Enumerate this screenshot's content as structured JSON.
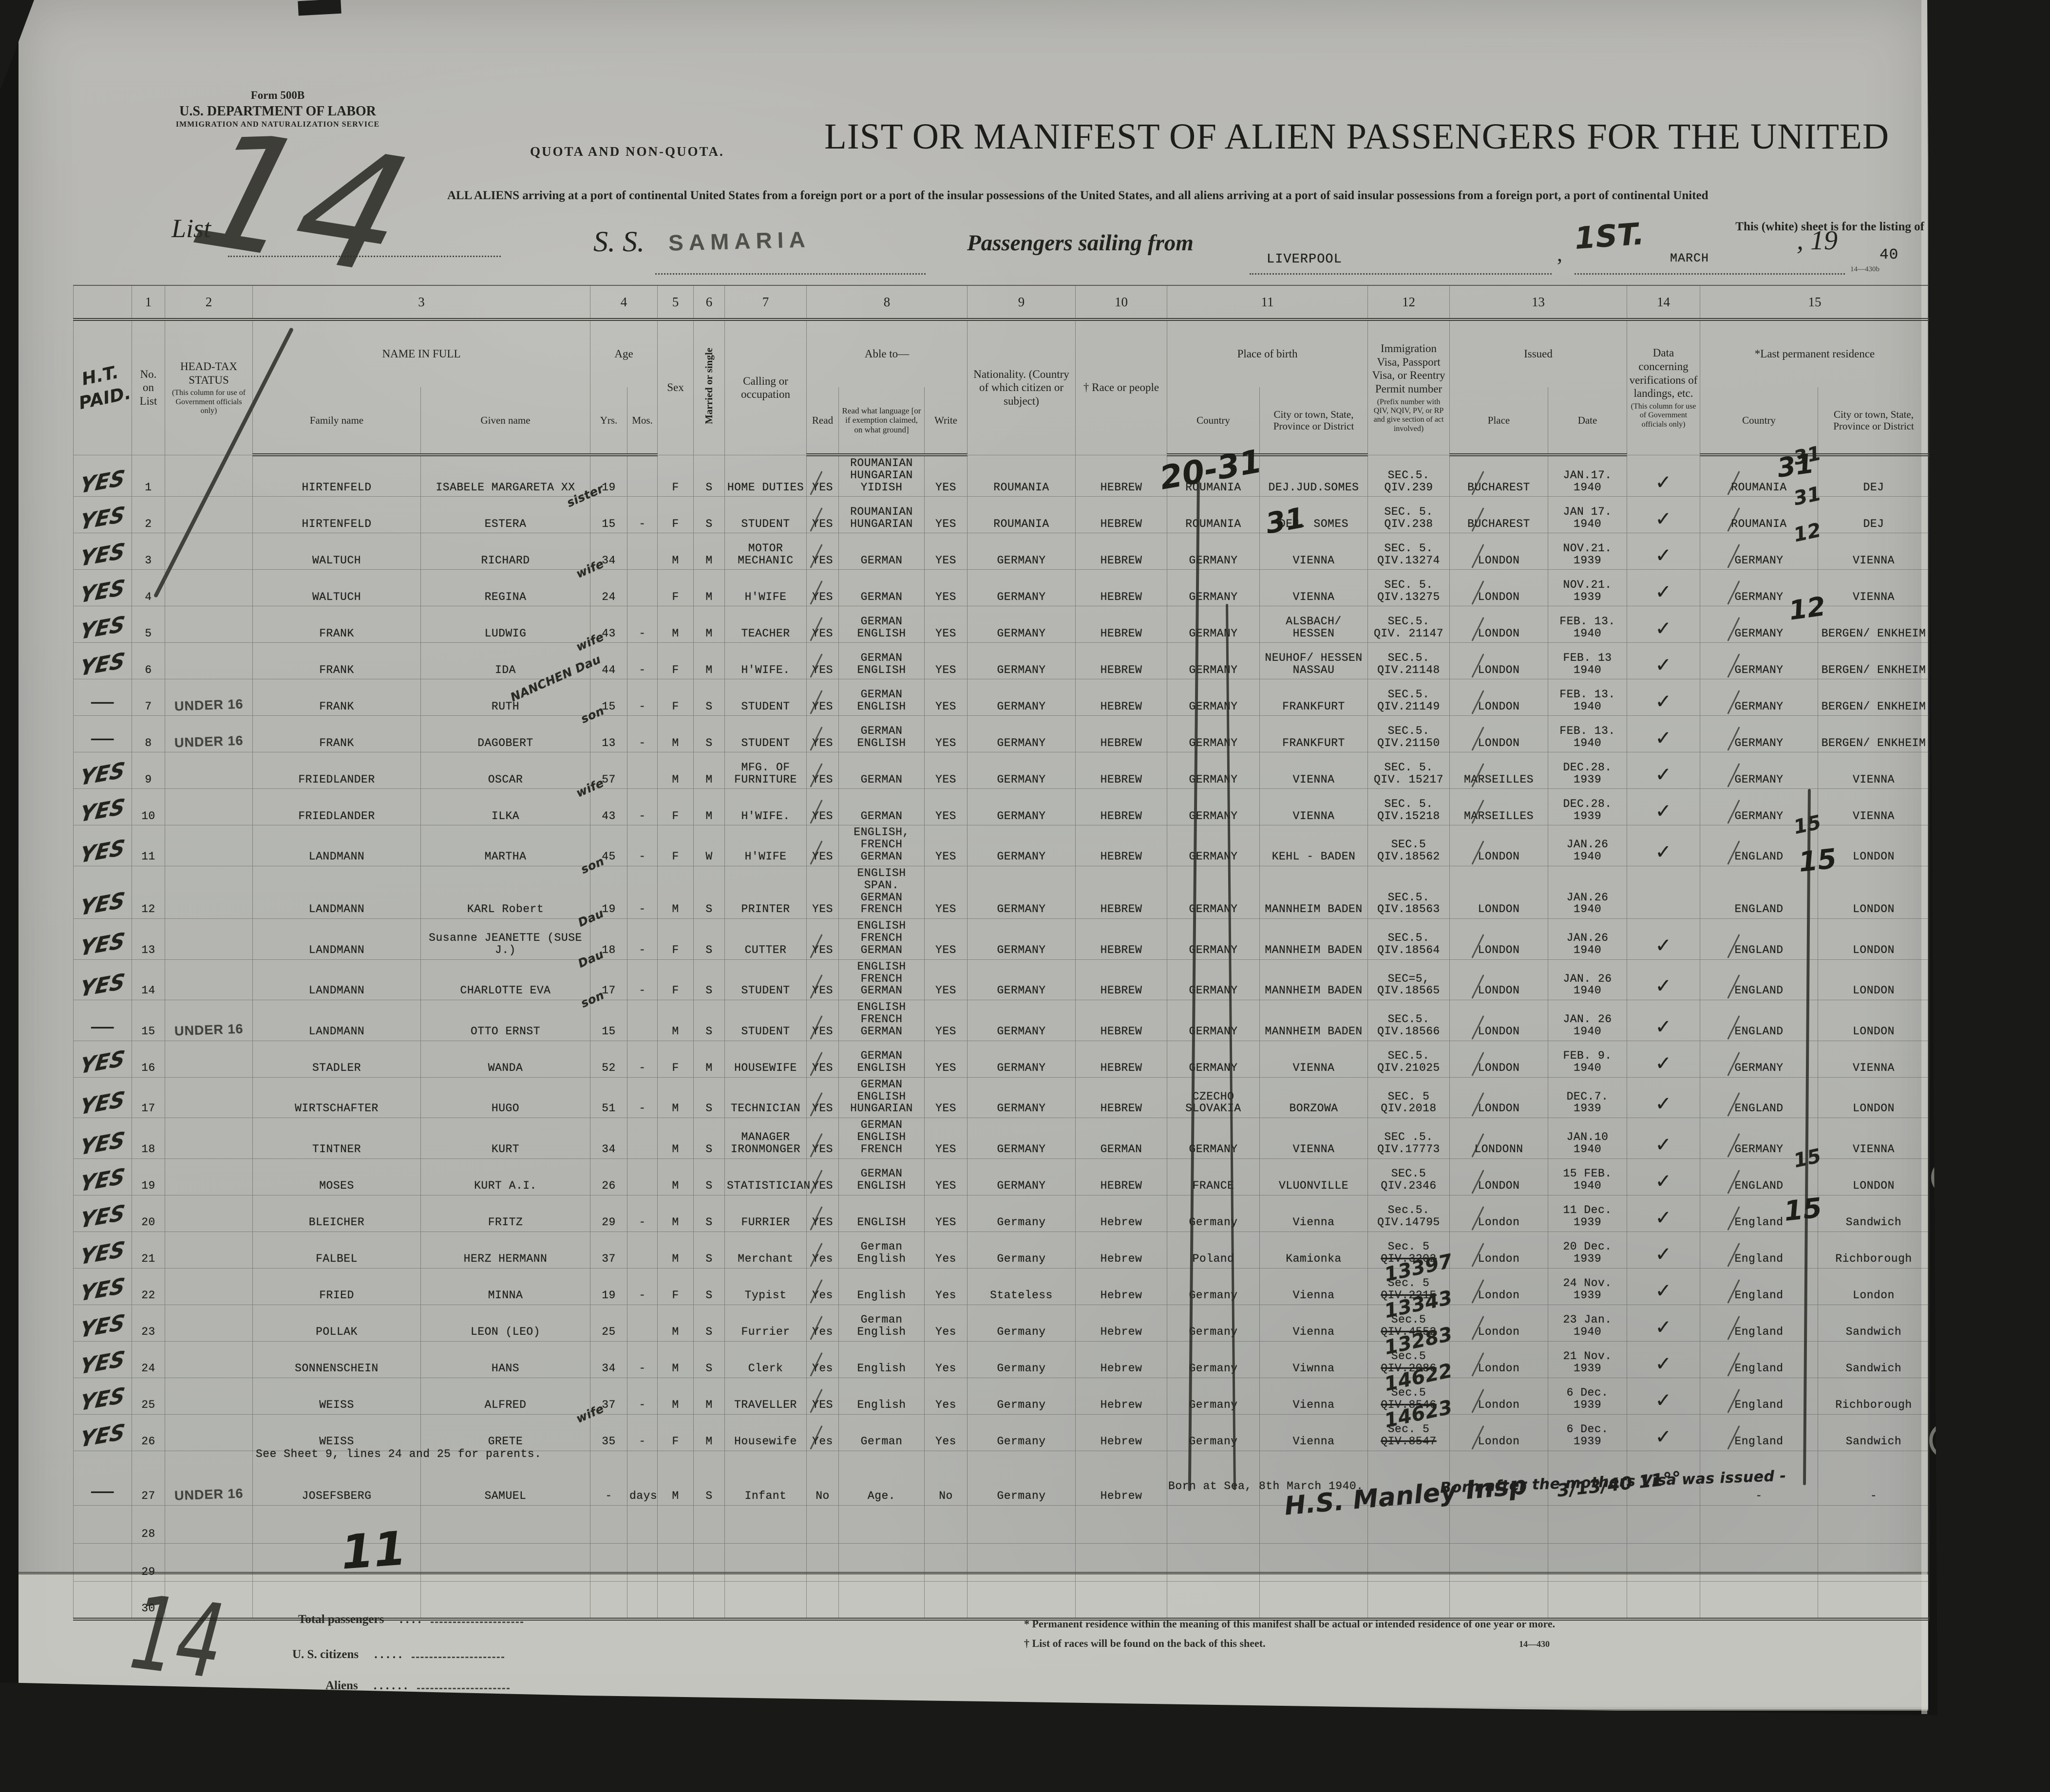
{
  "header": {
    "form_no": "Form 500B",
    "dept": "U.S. DEPARTMENT OF LABOR",
    "service": "IMMIGRATION AND NATURALIZATION SERVICE",
    "list_label": "List",
    "list_no_hw": "14",
    "quota": "QUOTA AND NON-QUOTA.",
    "title": "LIST OR MANIFEST OF ALIEN PASSENGERS FOR THE UNITED",
    "subtitle": "ALL ALIENS arriving at a port of continental United States from a foreign port or a port of the insular possessions of the United States, and all aliens arriving at a port of said insular possessions from a foreign port, a port of continental United",
    "subtitle2": "This (white) sheet is for the listing of",
    "ss_label": "S. S.",
    "ship": "SAMARIA",
    "sailing_label": "Passengers sailing from",
    "port": "LIVERPOOL",
    "sail_day_hw": "1ST.",
    "sail_month": "MARCH",
    "year_prefix": ", 19",
    "year_typed": "40",
    "form_small": "14—430b"
  },
  "ann": {
    "ht1": "H.T.",
    "ht2": "PAID.",
    "crossout": "20-31",
    "n31a": "31",
    "n31b": "31",
    "n12": "12",
    "n15a": "15",
    "n15b": "15",
    "tally": "14",
    "count11": "11"
  },
  "table": {
    "nums": [
      "1",
      "2",
      "3",
      "4",
      "5",
      "6",
      "7",
      "8",
      "9",
      "10",
      "11",
      "12",
      "13",
      "14",
      "15"
    ],
    "h": {
      "no_label": "No. on List",
      "headtax": "HEAD-TAX STATUS",
      "headtax_sub": "(This column for use of Government officials only)",
      "name": "NAME IN FULL",
      "family": "Family name",
      "given": "Given name",
      "age": "Age",
      "yrs": "Yrs.",
      "mos": "Mos.",
      "sex": "Sex",
      "married": "Married or single",
      "calling": "Calling or occupation",
      "able": "Able to—",
      "read": "Read",
      "read_lang": "Read what language [or if exemption claimed, on what ground]",
      "write": "Write",
      "nationality": "Nationality. (Country of which citizen or subject)",
      "race": "† Race or people",
      "birth": "Place of birth",
      "country": "Country",
      "city": "City or town, State, Province or District",
      "visa": "Immigration Visa, Passport Visa, or Reentry Permit number",
      "visa_sub": "(Prefix number with QIV, NQIV, PV, or RP and give section of act involved)",
      "issued": "Issued",
      "place": "Place",
      "date": "Date",
      "verif": "Data concerning verifications of landings, etc.",
      "verif_sub": "(This column for use of Government officials only)",
      "lastres": "*Last permanent residence"
    },
    "rows": [
      {
        "no": "1",
        "ht": "YES",
        "family": "HIRTENFELD",
        "given": "ISABELE MARGARETA XX",
        "yrs": "19",
        "mos": "",
        "sex": "F",
        "ms": "S",
        "calling": "HOME DUTIES",
        "read": "YES",
        "lang": "ROUMANIAN HUNGARIAN YIDISH",
        "write": "YES",
        "nat": "ROUMANIA",
        "race": "HEBREW",
        "bco": "ROUMANIA",
        "bci": "DEJ.JUD.SOMES",
        "visa": "SEC.5.|QIV.239",
        "place": "BUCHAREST",
        "date": "JAN.17. 1940",
        "chk": "✓",
        "lco": "ROUMANIA",
        "lco_hw": "31",
        "lci": "DEJ"
      },
      {
        "no": "2",
        "ht": "YES",
        "hw": "sister",
        "family": "HIRTENFELD",
        "given": "ESTERA",
        "yrs": "15",
        "mos": "-",
        "sex": "F",
        "ms": "S",
        "calling": "STUDENT",
        "read": "YES",
        "lang": "ROUMANIAN HUNGARIAN",
        "write": "YES",
        "nat": "ROUMANIA",
        "race": "HEBREW",
        "bco": "ROUMANIA",
        "bci": "DEJ. SOMES",
        "visa": "SEC. 5.|QIV.238",
        "place": "BUCHAREST",
        "date": "JAN 17. 1940",
        "chk": "✓",
        "lco": "ROUMANIA",
        "lco_hw": "31",
        "lci": "DEJ"
      },
      {
        "no": "3",
        "ht": "YES",
        "family": "WALTUCH",
        "given": "RICHARD",
        "yrs": "34",
        "mos": "",
        "sex": "M",
        "ms": "M",
        "calling": "MOTOR MECHANIC",
        "read": "YES",
        "lang": "GERMAN",
        "write": "YES",
        "nat": "GERMANY",
        "race": "HEBREW",
        "bco": "GERMANY",
        "bci": "VIENNA",
        "visa": "SEC. 5.|QIV.13274",
        "place": "LONDON",
        "date": "NOV.21. 1939",
        "chk": "✓",
        "lco": "GERMANY",
        "lco_hw": "12",
        "lci": "VIENNA"
      },
      {
        "no": "4",
        "ht": "YES",
        "hw": "wife",
        "family": "WALTUCH",
        "given": "REGINA",
        "yrs": "24",
        "mos": "",
        "sex": "F",
        "ms": "M",
        "calling": "H'WIFE",
        "read": "YES",
        "lang": "GERMAN",
        "write": "YES",
        "nat": "GERMANY",
        "race": "HEBREW",
        "bco": "GERMANY",
        "bci": "VIENNA",
        "visa": "SEC. 5.|QIV.13275",
        "place": "LONDON",
        "date": "NOV.21. 1939",
        "chk": "✓",
        "lco": "GERMANY",
        "lci": "VIENNA"
      },
      {
        "no": "5",
        "ht": "YES",
        "family": "FRANK",
        "given": "LUDWIG",
        "yrs": "43",
        "mos": "-",
        "sex": "M",
        "ms": "M",
        "calling": "TEACHER",
        "read": "YES",
        "lang": "GERMAN ENGLISH",
        "write": "YES",
        "nat": "GERMANY",
        "race": "HEBREW",
        "bco": "GERMANY",
        "bci": "ALSBACH/ HESSEN",
        "visa": "SEC.5.|QIV. 21147",
        "place": "LONDON",
        "date": "FEB. 13. 1940",
        "chk": "✓",
        "lco": "GERMANY",
        "lci": "BERGEN/ ENKHEIM"
      },
      {
        "no": "6",
        "ht": "YES",
        "hw": "wife",
        "family": "FRANK",
        "given": "IDA",
        "yrs": "44",
        "mos": "-",
        "sex": "F",
        "ms": "M",
        "calling": "H'WIFE.",
        "read": "YES",
        "lang": "GERMAN ENGLISH",
        "write": "YES",
        "nat": "GERMANY",
        "race": "HEBREW",
        "bco": "GERMANY",
        "bci": "NEUHOF/ HESSEN NASSAU",
        "visa": "SEC.5.|QIV.21148",
        "place": "LONDON",
        "date": "FEB. 13 1940",
        "chk": "✓",
        "lco": "GERMANY",
        "lci": "BERGEN/ ENKHEIM"
      },
      {
        "no": "7",
        "ht": "—",
        "stamp": "UNDER 16",
        "hw": "NANCHEN Dau",
        "family": "FRANK",
        "given": "RUTH",
        "yrs": "15",
        "mos": "-",
        "sex": "F",
        "ms": "S",
        "calling": "STUDENT",
        "read": "YES",
        "lang": "GERMAN ENGLISH",
        "write": "YES",
        "nat": "GERMANY",
        "race": "HEBREW",
        "bco": "GERMANY",
        "bci": "FRANKFURT",
        "visa": "SEC.5.|QIV.21149",
        "place": "LONDON",
        "date": "FEB. 13. 1940",
        "chk": "✓",
        "lco": "GERMANY",
        "lci": "BERGEN/ ENKHEIM"
      },
      {
        "no": "8",
        "ht": "—",
        "stamp": "UNDER 16",
        "hw": "son",
        "family": "FRANK",
        "given": "DAGOBERT",
        "yrs": "13",
        "mos": "-",
        "sex": "M",
        "ms": "S",
        "calling": "STUDENT",
        "read": "YES",
        "lang": "GERMAN ENGLISH",
        "write": "YES",
        "nat": "GERMANY",
        "race": "HEBREW",
        "bco": "GERMANY",
        "bci": "FRANKFURT",
        "visa": "SEC.5.|QIV.21150",
        "place": "LONDON",
        "date": "FEB. 13. 1940",
        "chk": "✓",
        "lco": "GERMANY",
        "lci": "BERGEN/ ENKHEIM"
      },
      {
        "no": "9",
        "ht": "YES",
        "family": "FRIEDLANDER",
        "given": "OSCAR",
        "yrs": "57",
        "mos": "",
        "sex": "M",
        "ms": "M",
        "calling": "MFG. OF FURNITURE",
        "read": "YES",
        "lang": "GERMAN",
        "write": "YES",
        "nat": "GERMANY",
        "race": "HEBREW",
        "bco": "GERMANY",
        "bci": "VIENNA",
        "visa": "SEC. 5.|QIV. 15217",
        "place": "MARSEILLES",
        "date": "DEC.28. 1939",
        "chk": "✓",
        "lco": "GERMANY",
        "lci": "VIENNA"
      },
      {
        "no": "10",
        "ht": "YES",
        "hw": "wife",
        "family": "FRIEDLANDER",
        "given": "ILKA",
        "yrs": "43",
        "mos": "-",
        "sex": "F",
        "ms": "M",
        "calling": "H'WIFE.",
        "read": "YES",
        "lang": "GERMAN",
        "write": "YES",
        "nat": "GERMANY",
        "race": "HEBREW",
        "bco": "GERMANY",
        "bci": "VIENNA",
        "visa": "SEC. 5.|QIV.15218",
        "place": "MARSEILLES",
        "date": "DEC.28. 1939",
        "chk": "✓",
        "lco": "GERMANY",
        "lci": "VIENNA"
      },
      {
        "no": "11",
        "ht": "YES",
        "family": "LANDMANN",
        "given": "MARTHA",
        "yrs": "45",
        "mos": "-",
        "sex": "F",
        "ms": "W",
        "calling": "H'WIFE",
        "read": "YES",
        "lang": "ENGLISH, FRENCH GERMAN",
        "write": "YES",
        "nat": "GERMANY",
        "race": "HEBREW",
        "bco": "GERMANY",
        "bci": "KEHL - BADEN",
        "visa": "SEC.5|QIV.18562",
        "place": "LONDON",
        "date": "JAN.26 1940",
        "chk": "✓",
        "lco": "ENGLAND",
        "lco_hw": "15",
        "lci": "LONDON"
      },
      {
        "no": "12",
        "ht": "YES",
        "hw": "son",
        "family": "LANDMANN",
        "given": "KARL Robert",
        "yrs": "19",
        "mos": "-",
        "sex": "M",
        "ms": "S",
        "calling": "PRINTER",
        "read": "YES",
        "lang": "ENGLISH SPAN. GERMAN FRENCH",
        "write": "YES",
        "nat": "GERMANY",
        "race": "HEBREW",
        "bco": "GERMANY",
        "bci": "MANNHEIM BADEN",
        "visa": "SEC.5.|QIV.18563",
        "place": "LONDON",
        "date": "JAN.26 1940",
        "chk": "",
        "lco": "ENGLAND",
        "lci": "LONDON"
      },
      {
        "no": "13",
        "ht": "YES",
        "hw": "Dau",
        "family": "LANDMANN",
        "given": "Susanne JEANETTE (SUSE J.)",
        "yrs": "18",
        "mos": "-",
        "sex": "F",
        "ms": "S",
        "calling": "CUTTER",
        "read": "YES",
        "lang": "ENGLISH FRENCH GERMAN",
        "write": "YES",
        "nat": "GERMANY",
        "race": "HEBREW",
        "bco": "GERMANY",
        "bci": "MANNHEIM BADEN",
        "visa": "SEC.5.|QIV.18564",
        "place": "LONDON",
        "date": "JAN.26 1940",
        "chk": "✓",
        "lco": "ENGLAND",
        "lci": "LONDON"
      },
      {
        "no": "14",
        "ht": "YES",
        "hw": "Dau",
        "family": "LANDMANN",
        "given": "CHARLOTTE EVA",
        "yrs": "17",
        "mos": "-",
        "sex": "F",
        "ms": "S",
        "calling": "STUDENT",
        "read": "YES",
        "lang": "ENGLISH FRENCH GERMAN",
        "write": "YES",
        "nat": "GERMANY",
        "race": "HEBREW",
        "bco": "GERMANY",
        "bci": "MANNHEIM BADEN",
        "visa": "SEC=5,|QIV.18565",
        "place": "LONDON",
        "date": "JAN. 26 1940",
        "chk": "✓",
        "lco": "ENGLAND",
        "lci": "LONDON"
      },
      {
        "no": "15",
        "ht": "—",
        "stamp": "UNDER 16",
        "hw": "son",
        "family": "LANDMANN",
        "given": "OTTO ERNST",
        "yrs": "15",
        "mos": "",
        "sex": "M",
        "ms": "S",
        "calling": "STUDENT",
        "read": "YES",
        "lang": "ENGLISH FRENCH GERMAN",
        "write": "YES",
        "nat": "GERMANY",
        "race": "HEBREW",
        "bco": "GERMANY",
        "bci": "MANNHEIM BADEN",
        "visa": "SEC.5.|QIV.18566",
        "place": "LONDON",
        "date": "JAN. 26 1940",
        "chk": "✓",
        "lco": "ENGLAND",
        "lci": "LONDON"
      },
      {
        "no": "16",
        "ht": "YES",
        "family": "STADLER",
        "given": "WANDA",
        "yrs": "52",
        "mos": "-",
        "sex": "F",
        "ms": "M",
        "calling": "HOUSEWIFE",
        "read": "YES",
        "lang": "GERMAN ENGLISH",
        "write": "YES",
        "nat": "GERMANY",
        "race": "HEBREW",
        "bco": "GERMANY",
        "bci": "VIENNA",
        "visa": "SEC.5.|QIV.21025",
        "place": "LONDON",
        "date": "FEB. 9. 1940",
        "chk": "✓",
        "lco": "GERMANY",
        "lci": "VIENNA"
      },
      {
        "no": "17",
        "ht": "YES",
        "family": "WIRTSCHAFTER",
        "given": "HUGO",
        "yrs": "51",
        "mos": "-",
        "sex": "M",
        "ms": "S",
        "calling": "TECHNICIAN",
        "read": "YES",
        "lang": "GERMAN ENGLISH HUNGARIAN",
        "write": "YES",
        "nat": "GERMANY",
        "race": "HEBREW",
        "bco": "CZECHO SLOVAKIA",
        "bci": "BORZOWA",
        "visa": "SEC. 5|QIV.2018",
        "place": "LONDON",
        "date": "DEC.7. 1939",
        "chk": "✓",
        "lco": "ENGLAND",
        "lci": "LONDON"
      },
      {
        "no": "18",
        "ht": "YES",
        "family": "TINTNER",
        "given": "KURT",
        "yrs": "34",
        "mos": "",
        "sex": "M",
        "ms": "S",
        "calling": "MANAGER IRONMONGER",
        "read": "YES",
        "lang": "GERMAN ENGLISH FRENCH",
        "write": "YES",
        "nat": "GERMANY",
        "race": "GERMAN",
        "bco": "GERMANY",
        "bci": "VIENNA",
        "visa": "SEC .5.|QIV.17773",
        "place": "LONDONN",
        "date": "JAN.10 1940",
        "chk": "✓",
        "lco": "GERMANY",
        "lci": "VIENNA"
      },
      {
        "no": "19",
        "ht": "YES",
        "family": "MOSES",
        "given": "KURT A.I.",
        "yrs": "26",
        "mos": "",
        "sex": "M",
        "ms": "S",
        "calling": "STATISTICIAN",
        "read": "YES",
        "lang": "GERMAN ENGLISH",
        "write": "YES",
        "nat": "GERMANY",
        "race": "HEBREW",
        "bco": "FRANCE",
        "bci": "VLUONVILLE",
        "visa": "SEC.5|QIV.2346",
        "place": "LONDON",
        "date": "15 FEB. 1940",
        "chk": "✓",
        "lco": "ENGLAND",
        "lco_hw": "15",
        "lci": "LONDON"
      },
      {
        "no": "20",
        "ht": "YES",
        "family": "BLEICHER",
        "given": "FRITZ",
        "yrs": "29",
        "mos": "-",
        "sex": "M",
        "ms": "S",
        "calling": "FURRIER",
        "read": "YES",
        "lang": "ENGLISH",
        "write": "YES",
        "nat": "Germany",
        "race": "Hebrew",
        "bco": "Germany",
        "bci": "Vienna",
        "visa": "Sec.5.|QIV.14795",
        "place": "London",
        "date": "11 Dec. 1939",
        "chk": "✓",
        "lco": "England",
        "lci": "Sandwich"
      },
      {
        "no": "21",
        "ht": "YES",
        "family": "FALBEL",
        "given": "HERZ HERMANN",
        "yrs": "37",
        "mos": "",
        "sex": "M",
        "ms": "S",
        "calling": "Merchant",
        "read": "Yes",
        "lang": "German English",
        "write": "Yes",
        "nat": "Germany",
        "race": "Hebrew",
        "bco": "Poland",
        "bci": "Kamionka",
        "visa": "Sec. 5|QIV.3202",
        "strike": true,
        "place": "London",
        "date": "20 Dec. 1939",
        "chk": "✓",
        "lco": "England",
        "lci": "Richborough"
      },
      {
        "no": "22",
        "ht": "YES",
        "family": "FRIED",
        "given": "MINNA",
        "yrs": "19",
        "mos": "-",
        "sex": "F",
        "ms": "S",
        "calling": "Typist",
        "read": "Yes",
        "lang": "English",
        "write": "Yes",
        "nat": "Stateless",
        "race": "Hebrew",
        "bco": "Germany",
        "bci": "Vienna",
        "visa": "Sec. 5|QIV.2215",
        "visa_hw": "13397",
        "strike": true,
        "place": "London",
        "date": "24 Nov. 1939",
        "chk": "✓",
        "lco": "England",
        "lci": "London"
      },
      {
        "no": "23",
        "ht": "YES",
        "family": "POLLAK",
        "given": "LEON (LEO)",
        "yrs": "25",
        "mos": "",
        "sex": "M",
        "ms": "S",
        "calling": "Furrier",
        "read": "Yes",
        "lang": "German English",
        "write": "Yes",
        "nat": "Germany",
        "race": "Hebrew",
        "bco": "Germany",
        "bci": "Vienna",
        "visa": "Sec.5|QIV.4552",
        "visa_hw": "13343",
        "strike": true,
        "place": "London",
        "date": "23 Jan. 1940",
        "chk": "✓",
        "lco": "England",
        "lci": "Sandwich"
      },
      {
        "no": "24",
        "ht": "YES",
        "family": "SONNENSCHEIN",
        "given": "HANS",
        "yrs": "34",
        "mos": "-",
        "sex": "M",
        "ms": "S",
        "calling": "Clerk",
        "read": "Yes",
        "lang": "English",
        "write": "Yes",
        "nat": "Germany",
        "race": "Hebrew",
        "bco": "Germany",
        "bci": "Viwnna",
        "visa": "Sec.5|QIV.2086",
        "visa_hw": "13283",
        "strike": true,
        "place": "London",
        "date": "21 Nov. 1939",
        "chk": "✓",
        "lco": "England",
        "lci": "Sandwich"
      },
      {
        "no": "25",
        "ht": "YES",
        "family": "WEISS",
        "given": "ALFRED",
        "yrs": "37",
        "mos": "-",
        "sex": "M",
        "ms": "M",
        "calling": "TRAVELLER",
        "read": "YES",
        "lang": "English",
        "write": "Yes",
        "nat": "Germany",
        "race": "Hebrew",
        "bco": "Germany",
        "bci": "Vienna",
        "visa": "Sec.5|QIV.8546",
        "visa_hw": "14622",
        "strike": true,
        "place": "London",
        "date": "6 Dec. 1939",
        "chk": "✓",
        "lco": "England",
        "lci": "Richborough"
      },
      {
        "no": "26",
        "ht": "YES",
        "hw": "wife",
        "family": "WEISS",
        "given": "GRETE",
        "yrs": "35",
        "mos": "-",
        "sex": "F",
        "ms": "M",
        "calling": "Housewife",
        "read": "Yes",
        "lang": "German",
        "write": "Yes",
        "nat": "Germany",
        "race": "Hebrew",
        "bco": "Germany",
        "bci": "Vienna",
        "visa": "Sec. 5|QIV.8547",
        "visa_hw": "14623",
        "strike": true,
        "place": "London",
        "date": "6 Dec. 1939",
        "chk": "✓",
        "lco": "England",
        "lci": "Sandwich"
      },
      {
        "no": "27",
        "ht": "—",
        "stamp": "UNDER 16",
        "note_above": "See Sheet 9, lines 24 and 25 for parents.",
        "family": "JOSEFSBERG",
        "given": "SAMUEL",
        "yrs": "-",
        "mos": "days",
        "sex": "M",
        "ms": "S",
        "calling": "Infant",
        "read": "No",
        "lang": "Age.",
        "write": "No",
        "nat": "Germany",
        "race": "Hebrew",
        "born": "Born at Sea, 8th March 1940.",
        "born_hw": "Born after the mothers Visa was issued -",
        "sign_hw": "H.S. Manley Insp",
        "sign_date_hw": "3/13/40 11°°",
        "lco": "-",
        "lci": "-"
      },
      {
        "no": "28"
      },
      {
        "no": "29"
      },
      {
        "no": "30"
      }
    ]
  },
  "footer": {
    "total_label": "Total passengers",
    "total_dots": ".    .    .    .",
    "us_label": "U. S. citizens",
    "us_dots": ".    .    .    .    .",
    "aliens_label": "Aliens",
    "aliens_dots": ".    .    .    .    .    .",
    "note1": "* Permanent residence within the meaning of this manifest shall be actual or intended residence of one year or more.",
    "note2": "† List of races will be found on the back of this sheet.",
    "form_code": "14—430"
  }
}
